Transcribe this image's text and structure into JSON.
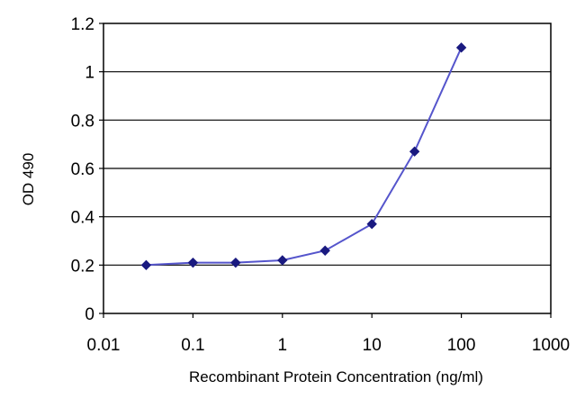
{
  "chart_data": {
    "type": "line",
    "title": "",
    "xlabel": "Recombinant Protein Concentration (ng/ml)",
    "ylabel": "OD 490",
    "x_scale": "log",
    "xlim": [
      0.01,
      1000
    ],
    "ylim": [
      0,
      1.2
    ],
    "x_ticks": [
      "0.01",
      "0.1",
      "1",
      "10",
      "100",
      "1000"
    ],
    "y_ticks": [
      "0",
      "0.2",
      "0.4",
      "0.6",
      "0.8",
      "1",
      "1.2"
    ],
    "grid": "horizontal",
    "legend": "none",
    "series": [
      {
        "color": "#5555cc",
        "marker_color": "#1a1a80",
        "x": [
          0.03,
          0.1,
          0.3,
          1,
          3,
          10,
          30,
          100
        ],
        "y": [
          0.2,
          0.21,
          0.21,
          0.22,
          0.26,
          0.37,
          0.67,
          1.1
        ]
      }
    ]
  }
}
